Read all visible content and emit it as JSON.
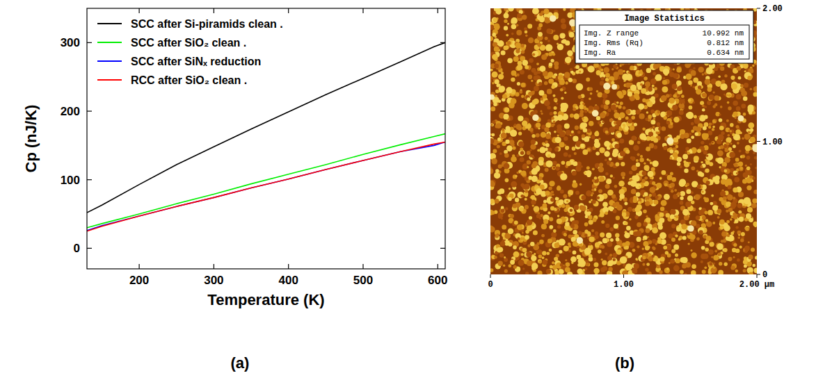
{
  "chart_data": [
    {
      "type": "line",
      "caption": "(a)",
      "x_label": "Temperature (K)",
      "y_label": "Cp (nJ/K)",
      "x": [
        130,
        150,
        200,
        250,
        300,
        350,
        400,
        450,
        500,
        550,
        595,
        610
      ],
      "xlim": [
        130,
        610
      ],
      "xticks": [
        200,
        300,
        400,
        500,
        600
      ],
      "ylim": [
        -30,
        350
      ],
      "yticks": [
        0,
        100,
        200,
        300
      ],
      "legend": "upper left",
      "grid": false,
      "series": [
        {
          "name": "SCC after Si-piramids clean .",
          "color": "#000000",
          "values": [
            52,
            63,
            93,
            122,
            148,
            174,
            199,
            224,
            248,
            272,
            294,
            300
          ]
        },
        {
          "name": "SCC after SiO₂ clean .",
          "color": "#00ee00",
          "values": [
            30,
            36,
            50,
            65,
            79,
            94,
            108,
            122,
            137,
            151,
            163,
            167
          ]
        },
        {
          "name": "SCC after SiNₓ reduction",
          "color": "#0000ff",
          "values": [
            26,
            33,
            47,
            61,
            74,
            88,
            101,
            115,
            128,
            141,
            150,
            155
          ]
        },
        {
          "name": "RCC after SiO₂ clean .",
          "color": "#ff0000",
          "values": [
            25,
            32,
            47,
            61,
            74,
            88,
            101,
            115,
            128,
            141,
            152,
            155
          ]
        }
      ]
    },
    {
      "type": "image",
      "caption": "(b)",
      "title": "Image Statistics",
      "stats": [
        {
          "label": "Img. Z range",
          "value": "10.992 nm"
        },
        {
          "label": "Img. Rms (Rq)",
          "value": "0.812 nm"
        },
        {
          "label": "Img. Ra",
          "value": "0.634 nm"
        }
      ],
      "xlim": [
        0,
        2
      ],
      "xticks": [
        0,
        {
          "value": 1,
          "label": "1.00"
        },
        {
          "value": 2,
          "label": "2.00 µm"
        }
      ],
      "ylim": [
        0,
        2
      ],
      "yticks": [
        0,
        {
          "value": 1,
          "label": "1.00"
        },
        {
          "value": 2,
          "label": "2.00"
        }
      ]
    }
  ]
}
